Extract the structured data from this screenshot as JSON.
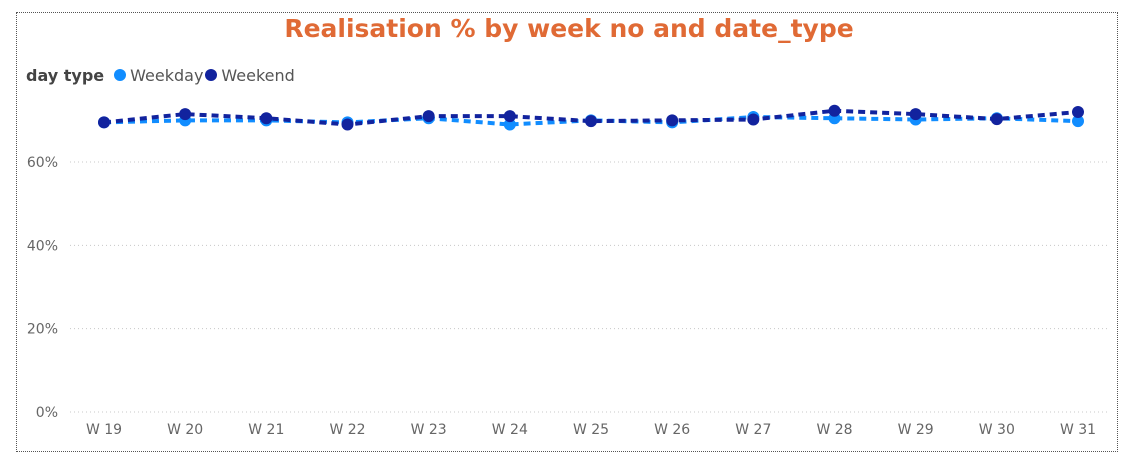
{
  "chart_data": {
    "type": "line",
    "title": "Realisation % by week no and date_type",
    "legend_title": "day type",
    "legend_placement": "top-left",
    "categories": [
      "W 19",
      "W 20",
      "W 21",
      "W 22",
      "W 23",
      "W 24",
      "W 25",
      "W 26",
      "W 27",
      "W 28",
      "W 29",
      "W 30",
      "W 31"
    ],
    "ylim": [
      0,
      80
    ],
    "yticks": [
      0,
      20,
      40,
      60
    ],
    "ytick_labels": [
      "0%",
      "20%",
      "40%",
      "60%"
    ],
    "grid": true,
    "series": [
      {
        "name": "Weekday",
        "color": "#118dff",
        "values": [
          69.5,
          70.0,
          70.0,
          69.5,
          70.5,
          69.0,
          70.0,
          69.5,
          70.8,
          70.5,
          70.2,
          70.5,
          69.8
        ]
      },
      {
        "name": "Weekend",
        "color": "#12239e",
        "values": [
          69.5,
          71.5,
          70.5,
          69.0,
          71.0,
          71.0,
          69.8,
          70.0,
          70.2,
          72.3,
          71.5,
          70.3,
          72.0
        ]
      }
    ]
  }
}
